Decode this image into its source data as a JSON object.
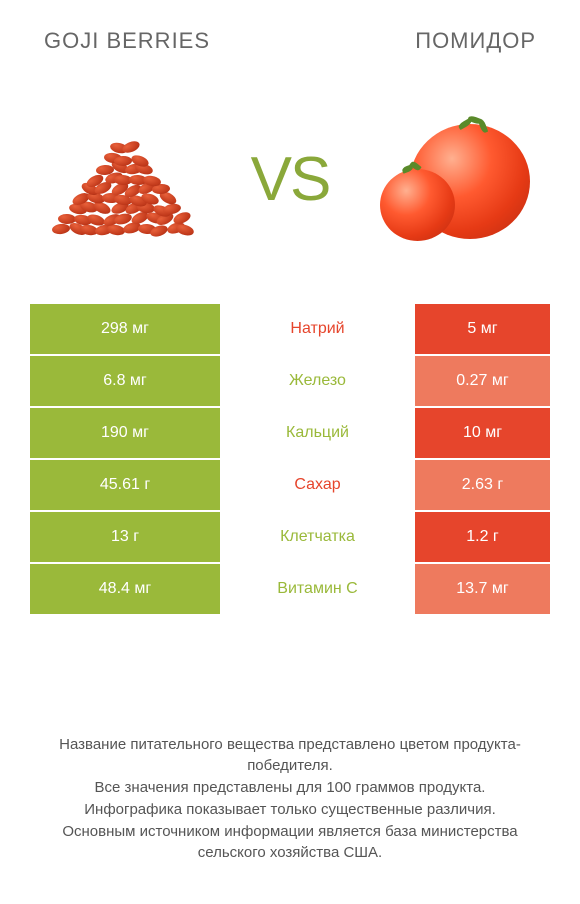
{
  "header": {
    "left": "GOJI BERRIES",
    "right": "ПОМИДОР"
  },
  "vs_text": "VS",
  "colors": {
    "left_bar": "#9ab93a",
    "right_dark": "#e6452c",
    "right_light": "#ee7a5e",
    "mid_green": "#9ab93a",
    "mid_red": "#e6452c",
    "text_white": "#ffffff"
  },
  "rows": [
    {
      "left": "298 мг",
      "mid": "Натрий",
      "right": "5 мг",
      "mid_color": "#e6452c",
      "right_bg": "#e6452c"
    },
    {
      "left": "6.8 мг",
      "mid": "Железо",
      "right": "0.27 мг",
      "mid_color": "#9ab93a",
      "right_bg": "#ee7a5e"
    },
    {
      "left": "190 мг",
      "mid": "Кальций",
      "right": "10 мг",
      "mid_color": "#9ab93a",
      "right_bg": "#e6452c"
    },
    {
      "left": "45.61 г",
      "mid": "Сахар",
      "right": "2.63 г",
      "mid_color": "#e6452c",
      "right_bg": "#ee7a5e"
    },
    {
      "left": "13 г",
      "mid": "Клетчатка",
      "right": "1.2 г",
      "mid_color": "#9ab93a",
      "right_bg": "#e6452c"
    },
    {
      "left": "48.4 мг",
      "mid": "Витамин C",
      "right": "13.7 мг",
      "mid_color": "#9ab93a",
      "right_bg": "#ee7a5e"
    }
  ],
  "footer": {
    "l1": "Название питательного вещества представлено цветом продукта-победителя.",
    "l2": "Все значения представлены для 100 граммов продукта.",
    "l3": "Инфографика показывает только существенные различия.",
    "l4": "Основным источником информации является база министерства сельского хозяйства США."
  }
}
